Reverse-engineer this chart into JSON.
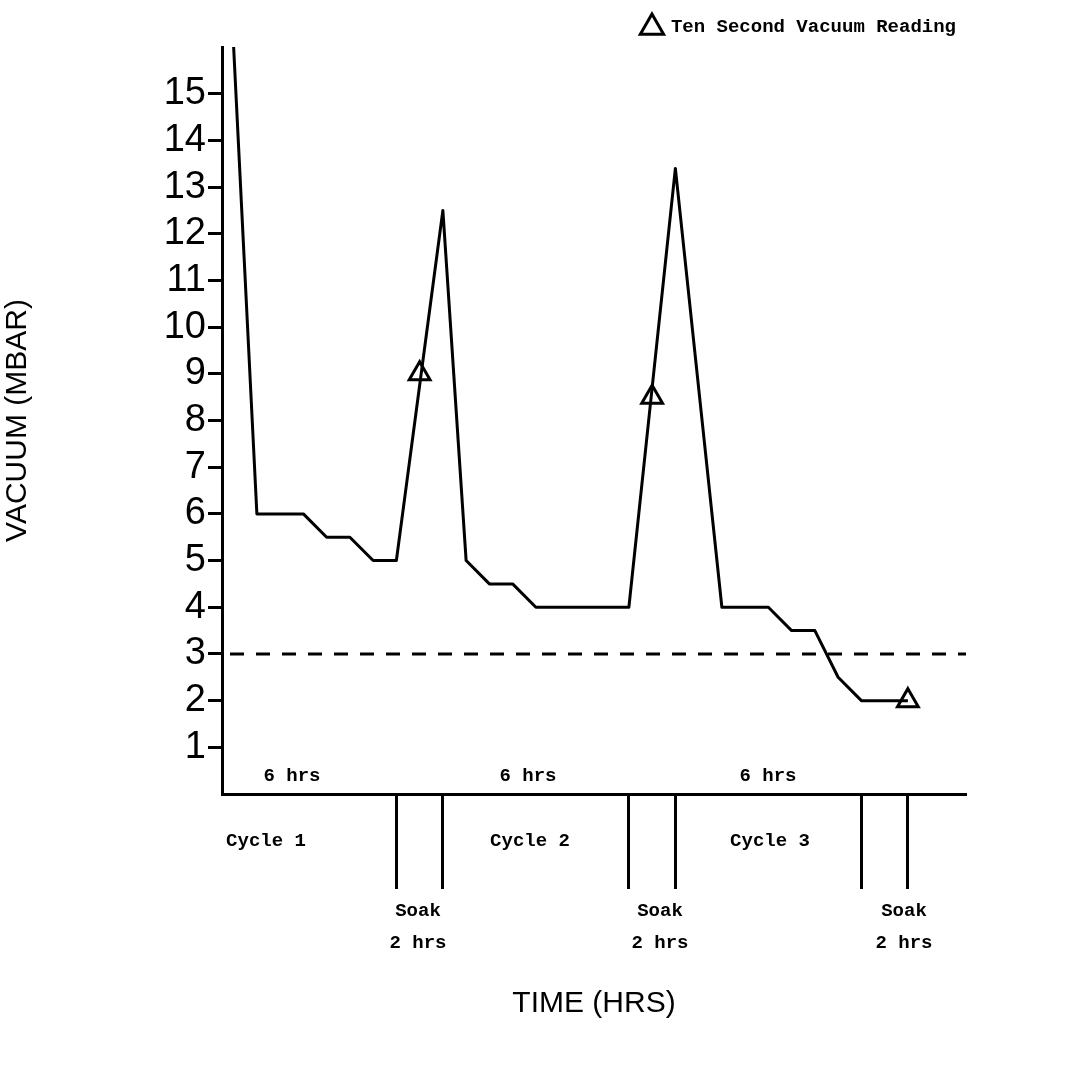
{
  "chart_data": {
    "type": "line",
    "ylabel": "VACUUM (MBAR)",
    "categories": [
      null,
      null,
      null,
      null,
      null,
      null,
      null,
      null,
      null,
      null,
      null,
      null,
      null,
      null,
      null,
      null,
      null,
      null,
      null,
      null,
      null,
      null,
      null,
      null,
      null,
      null,
      null,
      null,
      null,
      null,
      null,
      null
    ],
    "ylim": [
      0,
      16
    ],
    "yticks": [
      1,
      2,
      3,
      4,
      5,
      6,
      7,
      8,
      9,
      10,
      11,
      12,
      13,
      14,
      15
    ],
    "tick_labels": "y",
    "legend": "top right",
    "series": [
      {
        "type": "line",
        "color": "#000000",
        "marker": "none",
        "line_style": "solid",
        "values": [
          16,
          6,
          6,
          6,
          5.5,
          5.5,
          5,
          5,
          8.75,
          12.5,
          5,
          4.5,
          4.5,
          4,
          4,
          4,
          4,
          4,
          8.7,
          13.4,
          8.7,
          4,
          4,
          4,
          3.5,
          3.5,
          2.5,
          2,
          2,
          2,
          null,
          null
        ]
      },
      {
        "type": "scatter",
        "name": "Ten Second Vacuum Reading",
        "color": "#000000",
        "marker": "triangle",
        "values": [
          null,
          null,
          null,
          null,
          null,
          null,
          null,
          null,
          9,
          null,
          null,
          null,
          null,
          null,
          null,
          null,
          null,
          null,
          8.5,
          null,
          null,
          null,
          null,
          null,
          null,
          null,
          null,
          null,
          null,
          2,
          null,
          null
        ]
      }
    ],
    "ref_lines": [
      {
        "axis": "y",
        "value": 3,
        "color": "#000000",
        "line_style": "dashed"
      }
    ],
    "annotations": [
      "6 hrs",
      "6 hrs",
      "6 hrs",
      "Cycle 1",
      "Cycle 2",
      "Cycle 3",
      "Soak\n2 hrs",
      "Soak\n2 hrs",
      "Soak\n2 hrs",
      "TIME (HRS)"
    ]
  }
}
